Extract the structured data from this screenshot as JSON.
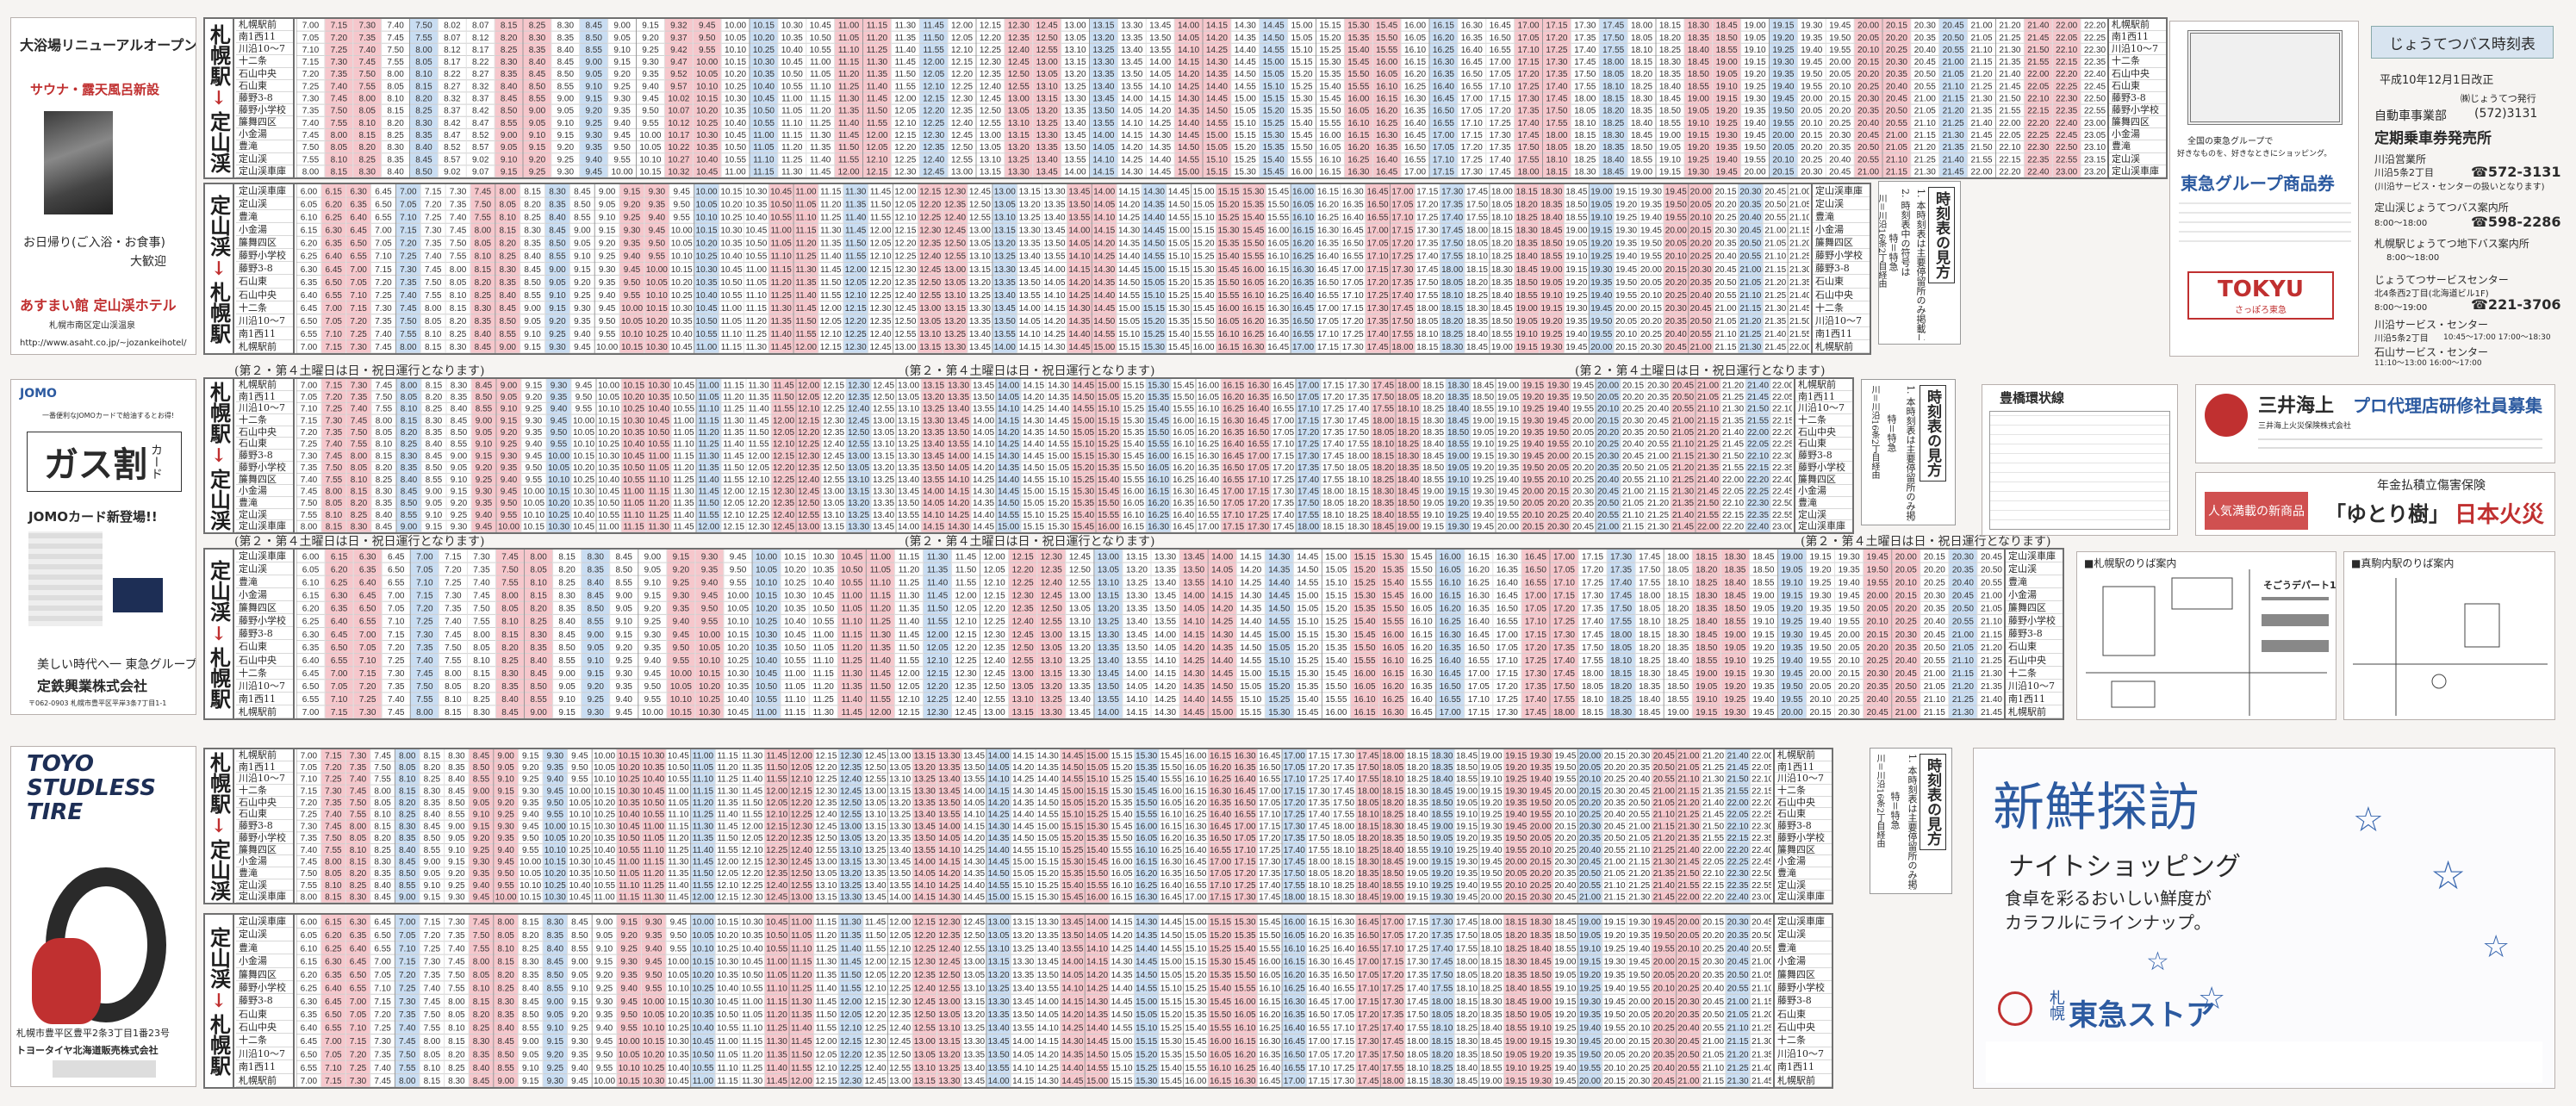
{
  "header": {
    "title": "じょうてつバス時刻表",
    "revision": "平成10年12月1日改正",
    "publisher": "㈱じょうてつ発行",
    "department": "自動車事業部",
    "phone_main": "(572)3131",
    "commuter_pass": "定期乗車券発売所",
    "offices": [
      {
        "name": "川沿営業所",
        "address": "川沿5条2丁目",
        "phone": "☎572-3131",
        "note": "(川沿サービス・センターの扱いとなります)"
      },
      {
        "name": "定山渓じょうてつバス案内所",
        "address": "",
        "phone": "☎598-2286",
        "note": "8:00〜18:00"
      },
      {
        "name": "札幌駅じょうてつ地下バス案内所",
        "address": "",
        "phone": "",
        "note": "8:00〜18:00"
      },
      {
        "name": "じょうてつサービスセンター",
        "address": "北4条西2丁目(北海道ビル1F)",
        "phone": "☎221-3706",
        "note": "8:00〜19:00"
      },
      {
        "name": "川沿サービス・センター",
        "address": "川沿5条2丁目",
        "phone": "",
        "note": "10:45〜17:00 17:00〜18:30"
      },
      {
        "name": "石山サービス・センター",
        "address": "",
        "phone": "",
        "note": "11:10〜13:00 16:00〜17:00"
      }
    ]
  },
  "stations_outbound": [
    "札幌駅前",
    "南1西11",
    "川沿10〜7",
    "十二条",
    "石山中央",
    "石山東",
    "藤野3-8",
    "藤野小学校",
    "簾舞四区",
    "小金湯",
    "豊滝",
    "定山渓",
    "定山渓車庫"
  ],
  "stations_inbound": [
    "定山渓車庫",
    "定山渓",
    "豊滝",
    "小金湯",
    "簾舞四区",
    "藤野小学校",
    "藤野3-8",
    "石山東",
    "石山中央",
    "十二条",
    "川沿10〜7",
    "南1西11",
    "札幌駅前"
  ],
  "timetables": [
    {
      "id": "weekday-out",
      "route_top": "札幌駅",
      "route_bottom": "定山渓",
      "arrow": "↓",
      "times": [
        "7.00",
        "7.15",
        "7.30",
        "7.40",
        "7.50",
        "8.02",
        "8.07",
        "8.15",
        "8.25",
        "8.30",
        "8.45",
        "9.00",
        "9.15",
        "9.32",
        "9.45",
        "10.00",
        "10.15",
        "10.30",
        "10.45",
        "11.00",
        "11.15",
        "11.30",
        "11.45",
        "12.00",
        "12.15",
        "12.30",
        "12.45",
        "13.00",
        "13.15",
        "13.30",
        "13.45",
        "14.00",
        "14.15",
        "14.30",
        "14.45",
        "15.00",
        "15.15",
        "15.30",
        "15.45",
        "16.00",
        "16.15",
        "16.30",
        "16.45",
        "17.00",
        "17.15",
        "17.30",
        "17.45",
        "18.00",
        "18.15",
        "18.30",
        "18.45",
        "19.00",
        "19.15",
        "19.30",
        "19.45",
        "20.00",
        "20.15",
        "20.30",
        "20.45",
        "21.00",
        "21.20",
        "21.40",
        "22.00",
        "22.20"
      ]
    },
    {
      "id": "weekday-in",
      "route_top": "定山渓",
      "route_bottom": "札幌駅",
      "arrow": "↓",
      "times": [
        "6.00",
        "6.15",
        "6.30",
        "6.45",
        "7.00",
        "7.15",
        "7.30",
        "7.45",
        "8.00",
        "8.15",
        "8.30",
        "8.45",
        "9.00",
        "9.15",
        "9.30",
        "9.45",
        "10.00",
        "10.15",
        "10.30",
        "10.45",
        "11.00",
        "11.15",
        "11.30",
        "11.45",
        "12.00",
        "12.15",
        "12.30",
        "12.45",
        "13.00",
        "13.15",
        "13.30",
        "13.45",
        "14.00",
        "14.15",
        "14.30",
        "14.45",
        "15.00",
        "15.15",
        "15.30",
        "15.45",
        "16.00",
        "16.15",
        "16.30",
        "16.45",
        "17.00",
        "17.15",
        "17.30",
        "17.45",
        "18.00",
        "18.15",
        "18.30",
        "18.45",
        "19.00",
        "19.15",
        "19.30",
        "19.45",
        "20.00",
        "20.15",
        "20.30",
        "20.45",
        "21.00"
      ]
    },
    {
      "id": "saturday-out",
      "route_top": "札幌駅",
      "route_bottom": "定山渓",
      "arrow": "↓",
      "times": [
        "7.00",
        "7.15",
        "7.30",
        "7.45",
        "8.00",
        "8.15",
        "8.30",
        "8.45",
        "9.00",
        "9.15",
        "9.30",
        "9.45",
        "10.00",
        "10.15",
        "10.30",
        "10.45",
        "11.00",
        "11.15",
        "11.30",
        "11.45",
        "12.00",
        "12.15",
        "12.30",
        "12.45",
        "13.00",
        "13.15",
        "13.30",
        "13.45",
        "14.00",
        "14.15",
        "14.30",
        "14.45",
        "15.00",
        "15.15",
        "15.30",
        "15.45",
        "16.00",
        "16.15",
        "16.30",
        "16.45",
        "17.00",
        "17.15",
        "17.30",
        "17.45",
        "18.00",
        "18.15",
        "18.30",
        "18.45",
        "19.00",
        "19.15",
        "19.30",
        "19.45",
        "20.00",
        "20.15",
        "20.30",
        "20.45",
        "21.00",
        "21.20",
        "21.40",
        "22.00"
      ]
    },
    {
      "id": "saturday-in",
      "route_top": "定山渓",
      "route_bottom": "札幌駅",
      "arrow": "↓",
      "times": [
        "6.00",
        "6.15",
        "6.30",
        "6.45",
        "7.00",
        "7.15",
        "7.30",
        "7.45",
        "8.00",
        "8.15",
        "8.30",
        "8.45",
        "9.00",
        "9.15",
        "9.30",
        "9.45",
        "10.00",
        "10.15",
        "10.30",
        "10.45",
        "11.00",
        "11.15",
        "11.30",
        "11.45",
        "12.00",
        "12.15",
        "12.30",
        "12.45",
        "13.00",
        "13.15",
        "13.30",
        "13.45",
        "14.00",
        "14.15",
        "14.30",
        "14.45",
        "15.00",
        "15.15",
        "15.30",
        "15.45",
        "16.00",
        "16.15",
        "16.30",
        "16.45",
        "17.00",
        "17.15",
        "17.30",
        "17.45",
        "18.00",
        "18.15",
        "18.30",
        "18.45",
        "19.00",
        "19.15",
        "19.30",
        "19.45",
        "20.00",
        "20.15",
        "20.30",
        "20.45"
      ]
    },
    {
      "id": "holiday-out",
      "route_top": "札幌駅",
      "route_bottom": "定山渓",
      "arrow": "↓",
      "times": [
        "7.00",
        "7.15",
        "7.30",
        "7.45",
        "8.00",
        "8.15",
        "8.30",
        "8.45",
        "9.00",
        "9.15",
        "9.30",
        "9.45",
        "10.00",
        "10.15",
        "10.30",
        "10.45",
        "11.00",
        "11.15",
        "11.30",
        "11.45",
        "12.00",
        "12.15",
        "12.30",
        "12.45",
        "13.00",
        "13.15",
        "13.30",
        "13.45",
        "14.00",
        "14.15",
        "14.30",
        "14.45",
        "15.00",
        "15.15",
        "15.30",
        "15.45",
        "16.00",
        "16.15",
        "16.30",
        "16.45",
        "17.00",
        "17.15",
        "17.30",
        "17.45",
        "18.00",
        "18.15",
        "18.30",
        "18.45",
        "19.00",
        "19.15",
        "19.30",
        "19.45",
        "20.00",
        "20.15",
        "20.30",
        "20.45",
        "21.00",
        "21.20",
        "21.40",
        "22.00"
      ]
    },
    {
      "id": "holiday-in",
      "route_top": "定山渓",
      "route_bottom": "札幌駅",
      "arrow": "↓",
      "times": [
        "6.00",
        "6.15",
        "6.30",
        "6.45",
        "7.00",
        "7.15",
        "7.30",
        "7.45",
        "8.00",
        "8.15",
        "8.30",
        "8.45",
        "9.00",
        "9.15",
        "9.30",
        "9.45",
        "10.00",
        "10.15",
        "10.30",
        "10.45",
        "11.00",
        "11.15",
        "11.30",
        "11.45",
        "12.00",
        "12.15",
        "12.30",
        "12.45",
        "13.00",
        "13.15",
        "13.30",
        "13.45",
        "14.00",
        "14.15",
        "14.30",
        "14.45",
        "15.00",
        "15.15",
        "15.30",
        "15.45",
        "16.00",
        "16.15",
        "16.30",
        "16.45",
        "17.00",
        "17.15",
        "17.30",
        "17.45",
        "18.00",
        "18.15",
        "18.30",
        "18.45",
        "19.00",
        "19.15",
        "19.30",
        "19.45",
        "20.00",
        "20.15",
        "20.30",
        "20.45"
      ]
    }
  ],
  "notices": {
    "saturday_note": "(第２・第４土曜日は日・祝日運行となります)"
  },
  "explain": {
    "title": "時刻表の見方",
    "line1": "1. 本時刻表は主要停留所のみ掲載してあります。",
    "line2": "2. 時刻表中の符号は",
    "line3": "特＝特急",
    "line4": "川＝川沿16条2丁目経由"
  },
  "ads": {
    "onsen": {
      "headline": "大浴場リニューアルオープン",
      "sub": "サウナ・露天風呂新設",
      "offer": "お日帰り(ご入浴・お食事)",
      "offer2": "大歓迎",
      "hotel": "あすまい館 定山渓ホテル",
      "address": "札幌市南区定山渓温泉",
      "url": "http://www.asaht.co.jp/~jozankeihotel/"
    },
    "jomo": {
      "brand": "JOMO",
      "tag": "一番便利なJOMOカードで給油するとお得!",
      "main": "ガス割",
      "card": "カード",
      "new": "JOMOカード新登場!!",
      "slogan": "美しい時代へ一 東急グループ",
      "company": "定鉄興業株式会社",
      "address": "〒062-0903 札幌市豊平区平岸3条7丁目1-1"
    },
    "toyo": {
      "brand": "TOYO STUDLESS TIRE",
      "address": "札幌市豊平区豊平2条3丁目1番23号",
      "company": "トヨータイヤ北海道販売株式会社"
    },
    "tokyu_gift": {
      "title": "東急グループ商品券",
      "line1": "全国の東急グループで",
      "line2": "好きなものを、好きなときにショッピング。",
      "brand": "TOKYU",
      "brand_sub": "さっぽろ東急"
    },
    "mitsui": {
      "name": "三井海上",
      "recruit": "プロ代理店研修社員募集",
      "sub": "三井海上火災保険株式会社"
    },
    "nihon": {
      "lead": "人気満載の新商品",
      "product": "「ゆとり樹」",
      "brand": "日本火災",
      "tag": "年金払積立傷害保険"
    },
    "toyohashi": {
      "title": "豊橋環状線"
    },
    "map1": {
      "title": "■札幌駅のりば案内"
    },
    "map2": {
      "title": "そごうデパート1F"
    },
    "map3": {
      "title": "■真駒内駅のりば案内"
    },
    "tokyu_store": {
      "title": "新鮮探訪",
      "subtitle": "ナイトショッピング",
      "copy1": "食卓を彩るおいしい鮮度が",
      "copy2": "カラフルにラインナップ。",
      "brand": "東急ストア",
      "city": "札幌"
    }
  },
  "colors": {
    "pink": "#f6c7cc",
    "blue": "#c9ddf2",
    "rule": "#707070",
    "red": "#c03030",
    "navy": "#2c5aa0"
  }
}
